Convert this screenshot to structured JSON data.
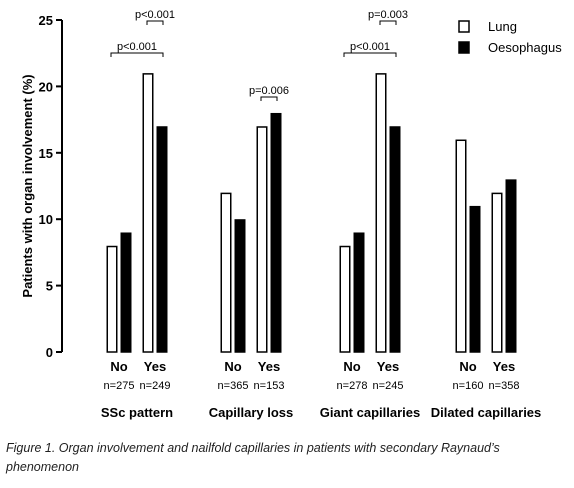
{
  "chart_data": {
    "type": "bar",
    "ylabel": "Patients with organ involvement (%)",
    "ylim": [
      0,
      25
    ],
    "yticks": [
      "0",
      "5",
      "10",
      "15",
      "20",
      "25"
    ],
    "legend_position": "top-right",
    "series": [
      {
        "name": "Lung",
        "fill": "#ffffff",
        "stroke": "#000000"
      },
      {
        "name": "Oesophagus",
        "fill": "#000000",
        "stroke": "#000000"
      }
    ],
    "groups": [
      {
        "label": "SSc pattern",
        "categories": [
          {
            "label": "No",
            "n": "n=275",
            "values": [
              8,
              9
            ]
          },
          {
            "label": "Yes",
            "n": "n=249",
            "values": [
              21,
              17
            ]
          }
        ],
        "brackets": [
          {
            "label": "p<0.001",
            "from": 0,
            "to": 1,
            "level": 0
          },
          {
            "label": "p<0.001",
            "from": 1,
            "to": 1,
            "level": 1
          }
        ]
      },
      {
        "label": "Capillary loss",
        "categories": [
          {
            "label": "No",
            "n": "n=365",
            "values": [
              12,
              10
            ]
          },
          {
            "label": "Yes",
            "n": "n=153",
            "values": [
              17,
              18
            ]
          }
        ],
        "brackets": [
          {
            "label": "p=0.006",
            "from": 1,
            "to": 1,
            "level": 2
          }
        ]
      },
      {
        "label": "Giant capillaries",
        "categories": [
          {
            "label": "No",
            "n": "n=278",
            "values": [
              8,
              9
            ]
          },
          {
            "label": "Yes",
            "n": "n=245",
            "values": [
              21,
              17
            ]
          }
        ],
        "brackets": [
          {
            "label": "p<0.001",
            "from": 0,
            "to": 1,
            "level": 0
          },
          {
            "label": "p=0.003",
            "from": 1,
            "to": 1,
            "level": 1
          }
        ]
      },
      {
        "label": "Dilated capillaries",
        "categories": [
          {
            "label": "No",
            "n": "n=160",
            "values": [
              16,
              11
            ]
          },
          {
            "label": "Yes",
            "n": "n=358",
            "values": [
              12,
              13
            ]
          }
        ],
        "brackets": []
      }
    ]
  },
  "caption": "Figure 1. Organ involvement and nailfold capillaries in patients with secondary Raynaud’s phenomenon"
}
